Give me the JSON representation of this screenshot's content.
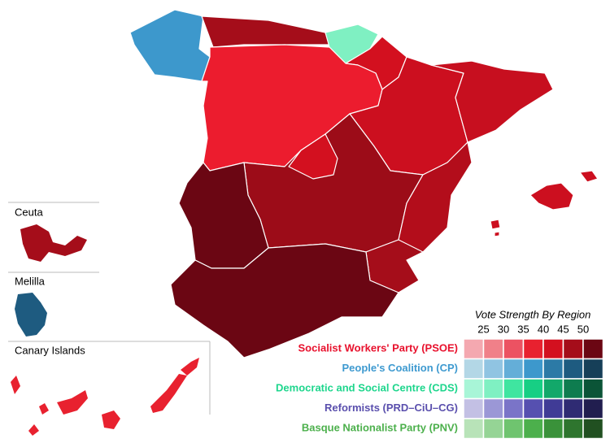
{
  "insets": [
    {
      "label": "Ceuta"
    },
    {
      "label": "Melilla"
    },
    {
      "label": "Canary Islands"
    }
  ],
  "legend": {
    "title": "Vote Strength By Region",
    "scale": [
      25,
      30,
      35,
      40,
      45,
      50
    ],
    "parties": [
      {
        "name": "Socialist Workers' Party (PSOE)",
        "color": "#e8112d",
        "shades": [
          "#f4a8b0",
          "#f08089",
          "#ec5262",
          "#e8212f",
          "#d3101f",
          "#a50d1a",
          "#6b0613"
        ]
      },
      {
        "name": "People's Coalition (CP)",
        "color": "#3e9ad0",
        "shades": [
          "#b3d7e6",
          "#90c4e2",
          "#64aed8",
          "#3d98cc",
          "#2c7aa6",
          "#1e5b80",
          "#163f58"
        ]
      },
      {
        "name": "Democratic and Social Centre (CDS)",
        "color": "#1ed68d",
        "shades": [
          "#a8f5d7",
          "#7ff0c2",
          "#3fe5a0",
          "#17cf84",
          "#12a86a",
          "#0e7c4f",
          "#0b5437"
        ]
      },
      {
        "name": "Reformists (PRD–CiU–CG)",
        "color": "#5a4fad",
        "shades": [
          "#c3c0e4",
          "#9b97d6",
          "#7a74c8",
          "#5650b0",
          "#403b96",
          "#2f2b73",
          "#211e4f"
        ]
      },
      {
        "name": "Basque Nationalist Party (PNV)",
        "color": "#4cb04c",
        "shades": [
          "#b8e3b8",
          "#95d495",
          "#6fc46f",
          "#4cb04c",
          "#3a923a",
          "#2e752e",
          "#215021"
        ]
      }
    ]
  }
}
